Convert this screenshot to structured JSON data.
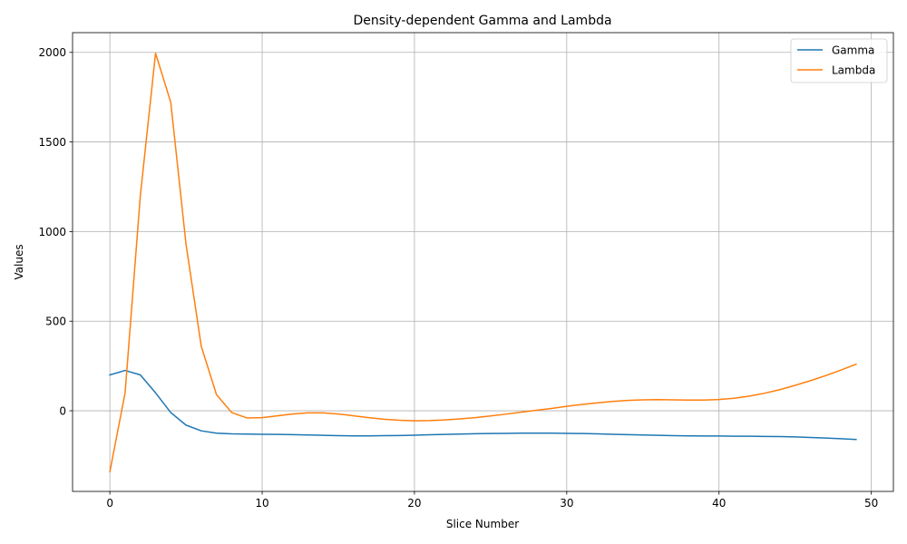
{
  "chart_data": {
    "type": "line",
    "title": "Density-dependent Gamma and Lambda",
    "xlabel": "Slice Number",
    "ylabel": "Values",
    "xlim": [
      -2.45,
      51.45
    ],
    "ylim": [
      -450,
      2110
    ],
    "xticks": [
      0,
      10,
      20,
      30,
      40,
      50
    ],
    "yticks": [
      0,
      500,
      1000,
      1500,
      2000
    ],
    "grid": true,
    "legend_position": "top-right",
    "x": [
      0,
      1,
      2,
      3,
      4,
      5,
      6,
      7,
      8,
      9,
      10,
      11,
      12,
      13,
      14,
      15,
      16,
      17,
      18,
      19,
      20,
      21,
      22,
      23,
      24,
      25,
      26,
      27,
      28,
      29,
      30,
      31,
      32,
      33,
      34,
      35,
      36,
      37,
      38,
      39,
      40,
      41,
      42,
      43,
      44,
      45,
      46,
      47,
      48,
      49
    ],
    "series": [
      {
        "name": "Gamma",
        "color": "#1f77b4",
        "values": [
          200,
          225,
          200,
          100,
          -10,
          -80,
          -112,
          -125,
          -129,
          -130,
          -131,
          -132,
          -133,
          -135,
          -137,
          -139,
          -140,
          -140,
          -139,
          -138,
          -136,
          -134,
          -132,
          -130,
          -128,
          -127,
          -126,
          -125,
          -125,
          -125,
          -126,
          -127,
          -129,
          -131,
          -133,
          -135,
          -137,
          -139,
          -140,
          -141,
          -141,
          -142,
          -142,
          -143,
          -144,
          -146,
          -149,
          -152,
          -156,
          -160
        ]
      },
      {
        "name": "Lambda",
        "color": "#ff7f0e",
        "values": [
          -340,
          100,
          1200,
          1995,
          1720,
          930,
          360,
          90,
          -10,
          -40,
          -38,
          -28,
          -18,
          -12,
          -12,
          -18,
          -28,
          -38,
          -47,
          -53,
          -56,
          -55,
          -51,
          -45,
          -38,
          -29,
          -19,
          -8,
          3,
          13,
          25,
          35,
          44,
          52,
          58,
          61,
          62,
          61,
          60,
          60,
          63,
          70,
          82,
          98,
          118,
          142,
          168,
          196,
          227,
          260
        ]
      }
    ]
  }
}
